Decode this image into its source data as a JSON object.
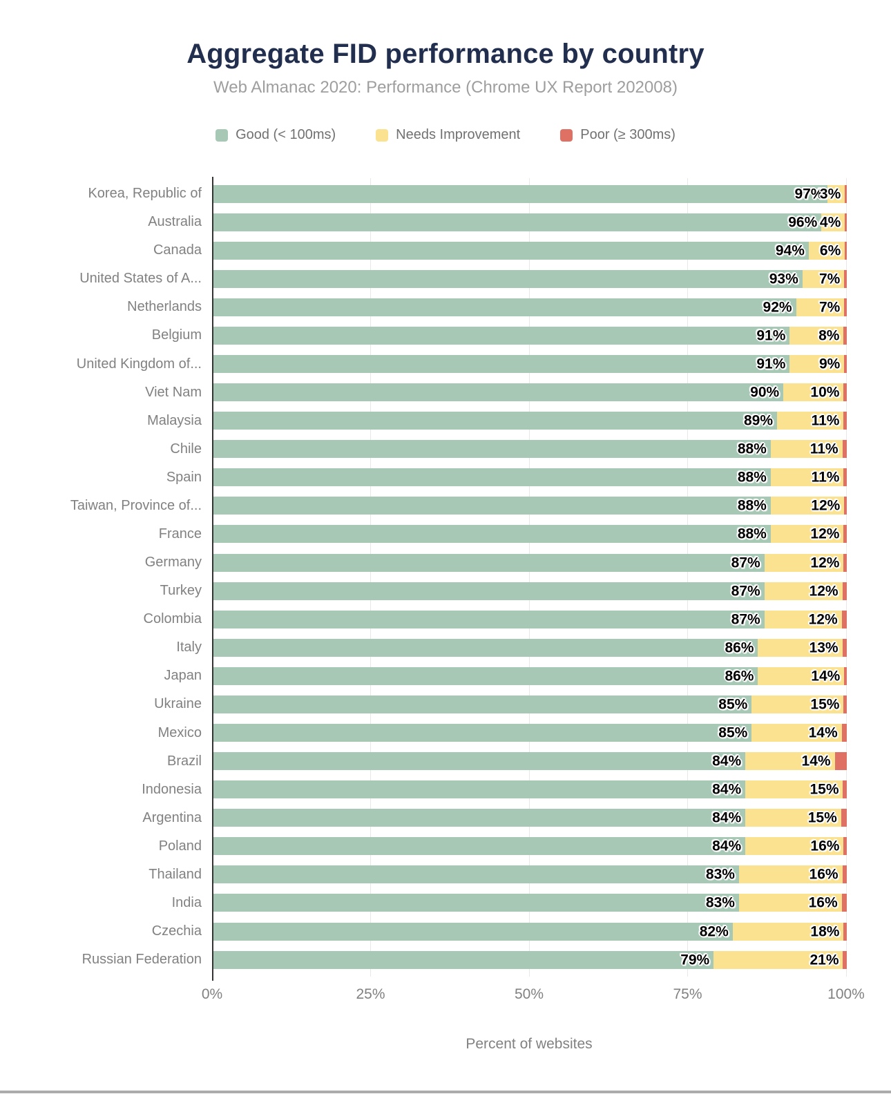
{
  "title": "Aggregate FID performance by country",
  "subtitle": "Web Almanac 2020: Performance (Chrome UX Report 202008)",
  "legend": [
    {
      "label": "Good (< 100ms)",
      "color": "#a6c8b5",
      "icon": "good-swatch-icon"
    },
    {
      "label": "Needs Improvement",
      "color": "#fbe291",
      "icon": "needs-improvement-swatch-icon"
    },
    {
      "label": "Poor (≥ 300ms)",
      "color": "#de7164",
      "icon": "poor-swatch-icon"
    }
  ],
  "colors": {
    "good": "#a6c8b5",
    "needs_improvement": "#fbe291",
    "poor": "#de7164",
    "title": "#212e4e",
    "subtitle": "#9e9e9e",
    "axis_text": "#818181",
    "axis_line": "#333333",
    "gridline": "#e8e8e8"
  },
  "x_axis": {
    "label": "Percent of websites",
    "ticks": [
      "0%",
      "25%",
      "50%",
      "75%",
      "100%"
    ]
  },
  "chart_data": {
    "type": "bar",
    "orientation": "horizontal",
    "stacked": true,
    "title": "Aggregate FID performance by country",
    "subtitle": "Web Almanac 2020: Performance (Chrome UX Report 202008)",
    "xlabel": "Percent of websites",
    "ylabel": "",
    "xlim": [
      0,
      100
    ],
    "x_tick_labels": [
      "0%",
      "25%",
      "50%",
      "75%",
      "100%"
    ],
    "grid": true,
    "legend_position": "top",
    "value_label_format": "integer percent on Good and Needs Improvement segments",
    "categories": [
      "Korea, Republic of",
      "Australia",
      "Canada",
      "United States of A...",
      "Netherlands",
      "Belgium",
      "United Kingdom of...",
      "Viet Nam",
      "Malaysia",
      "Chile",
      "Spain",
      "Taiwan, Province of...",
      "France",
      "Germany",
      "Turkey",
      "Colombia",
      "Italy",
      "Japan",
      "Ukraine",
      "Mexico",
      "Brazil",
      "Indonesia",
      "Argentina",
      "Poland",
      "Thailand",
      "India",
      "Czechia",
      "Russian Federation"
    ],
    "series": [
      {
        "name": "Good (< 100ms)",
        "color": "#a6c8b5",
        "labeled": true,
        "values": [
          97,
          96,
          94,
          93,
          92,
          91,
          91,
          90,
          89,
          88,
          88,
          88,
          88,
          87,
          87,
          87,
          86,
          86,
          85,
          85,
          84,
          84,
          84,
          84,
          83,
          83,
          82,
          79
        ]
      },
      {
        "name": "Needs Improvement",
        "color": "#fbe291",
        "labeled": true,
        "values": [
          3,
          4,
          6,
          7,
          7,
          8,
          9,
          10,
          11,
          11,
          11,
          12,
          12,
          12,
          12,
          12,
          13,
          14,
          15,
          14,
          14,
          15,
          15,
          16,
          16,
          16,
          18,
          21
        ]
      },
      {
        "name": "Poor (≥ 300ms)",
        "color": "#de7164",
        "labeled": false,
        "values_estimated_from_pixels": true,
        "values": [
          0.3,
          0.3,
          0.3,
          0.4,
          0.4,
          0.5,
          0.4,
          0.5,
          0.5,
          0.7,
          0.5,
          0.4,
          0.5,
          0.5,
          0.7,
          0.8,
          0.7,
          0.4,
          0.5,
          0.8,
          1.9,
          0.6,
          0.9,
          0.5,
          0.7,
          0.8,
          0.5,
          0.6
        ]
      }
    ]
  }
}
